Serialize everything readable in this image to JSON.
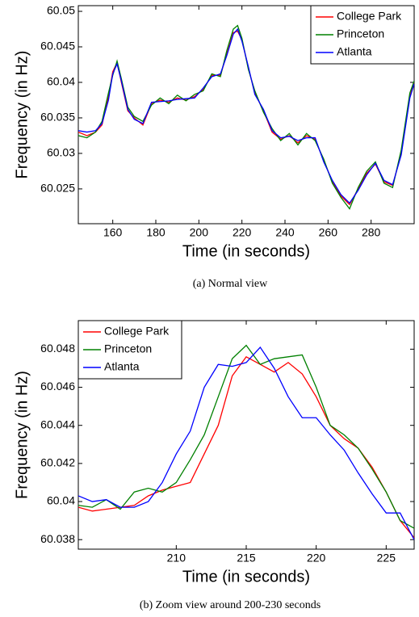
{
  "chart_data": [
    {
      "type": "line",
      "caption": "(a) Normal view",
      "xlabel": "Time (in seconds)",
      "ylabel": "Frequency (in Hz)",
      "legend": "upper right",
      "x": [
        144,
        148,
        152,
        155,
        158,
        160,
        162,
        164,
        167,
        170,
        174,
        178,
        182,
        186,
        190,
        194,
        198,
        202,
        206,
        210,
        213,
        216,
        218,
        220,
        223,
        226,
        230,
        234,
        238,
        242,
        246,
        250,
        254,
        258,
        262,
        266,
        270,
        274,
        278,
        282,
        286,
        290,
        294,
        298,
        300
      ],
      "xlim": [
        144,
        300
      ],
      "xticks": [
        160,
        180,
        200,
        220,
        240,
        260,
        280
      ],
      "ylim": [
        60.0201,
        60.0508
      ],
      "yticks": [
        60.025,
        60.03,
        60.035,
        60.04,
        60.045,
        60.05
      ],
      "series": [
        {
          "name": "College Park",
          "color": "#ff0000",
          "values": [
            60.033,
            60.0325,
            60.033,
            60.034,
            60.038,
            60.0415,
            60.0428,
            60.04,
            60.036,
            60.035,
            60.034,
            60.037,
            60.0375,
            60.0372,
            60.0378,
            60.0375,
            60.038,
            60.039,
            60.041,
            60.041,
            60.044,
            60.047,
            60.0472,
            60.046,
            60.042,
            60.0385,
            60.036,
            60.033,
            60.032,
            60.0325,
            60.0315,
            60.0325,
            60.032,
            60.029,
            60.026,
            60.024,
            60.0228,
            60.025,
            60.0272,
            60.0285,
            60.026,
            60.0255,
            60.03,
            60.038,
            60.04
          ]
        },
        {
          "name": "Princeton",
          "color": "#008000",
          "values": [
            60.0325,
            60.0322,
            60.033,
            60.0345,
            60.0385,
            60.041,
            60.043,
            60.0405,
            60.0365,
            60.0352,
            60.0345,
            60.0368,
            60.0378,
            60.037,
            60.0382,
            60.0374,
            60.0383,
            60.0388,
            60.0412,
            60.0408,
            60.0445,
            60.0475,
            60.048,
            60.0462,
            60.0418,
            60.0388,
            60.0358,
            60.0335,
            60.0318,
            60.0328,
            60.0312,
            60.0328,
            60.0318,
            60.0292,
            60.0258,
            60.0238,
            60.0222,
            60.0252,
            60.0275,
            60.0288,
            60.0258,
            60.0252,
            60.0305,
            60.0385,
            60.0402
          ]
        },
        {
          "name": "Atlanta",
          "color": "#0000ff",
          "values": [
            60.0332,
            60.033,
            60.0332,
            60.0342,
            60.0375,
            60.0412,
            60.0426,
            60.0402,
            60.0362,
            60.0348,
            60.0342,
            60.0372,
            60.0373,
            60.0374,
            60.0376,
            60.0377,
            60.0378,
            60.0392,
            60.0408,
            60.0412,
            60.0438,
            60.0468,
            60.0475,
            60.0458,
            60.0422,
            60.0383,
            60.0362,
            60.0332,
            60.0322,
            60.0324,
            60.0318,
            60.0322,
            60.0322,
            60.0288,
            60.0262,
            60.0242,
            60.023,
            60.0248,
            60.027,
            60.0286,
            60.0262,
            60.0256,
            60.0298,
            60.0378,
            60.0398
          ]
        }
      ]
    },
    {
      "type": "line",
      "caption": "(b) Zoom view around 200-230 seconds",
      "xlabel": "Time (in seconds)",
      "ylabel": "Frequency (in Hz)",
      "legend": "upper left",
      "x": [
        203,
        204,
        205,
        206,
        207,
        208,
        209,
        210,
        211,
        212,
        213,
        214,
        215,
        216,
        217,
        218,
        219,
        220,
        221,
        222,
        223,
        224,
        225,
        226,
        227
      ],
      "xlim": [
        203,
        227
      ],
      "xticks": [
        210,
        215,
        220,
        225
      ],
      "ylim": [
        60.0375,
        60.0495
      ],
      "yticks": [
        60.038,
        60.04,
        60.042,
        60.044,
        60.046,
        60.048
      ],
      "series": [
        {
          "name": "College Park",
          "color": "#ff0000",
          "values": [
            60.0397,
            60.0395,
            60.0396,
            60.0397,
            60.0398,
            60.0403,
            60.0406,
            60.0408,
            60.041,
            60.0425,
            60.044,
            60.0466,
            60.0476,
            60.0472,
            60.0468,
            60.0473,
            60.0467,
            60.0455,
            60.044,
            60.0433,
            60.0428,
            60.0418,
            60.0405,
            60.039,
            60.0381
          ]
        },
        {
          "name": "Princeton",
          "color": "#008000",
          "values": [
            60.0398,
            60.0397,
            60.0401,
            60.0396,
            60.0405,
            60.0407,
            60.0405,
            60.041,
            60.0422,
            60.0435,
            60.0455,
            60.0475,
            60.0482,
            60.0472,
            60.0475,
            60.0476,
            60.0477,
            60.046,
            60.044,
            60.0435,
            60.0428,
            60.0417,
            60.0405,
            60.039,
            60.0386
          ]
        },
        {
          "name": "Atlanta",
          "color": "#0000ff",
          "values": [
            60.0403,
            60.04,
            60.0401,
            60.0397,
            60.0397,
            60.04,
            60.041,
            60.0425,
            60.0437,
            60.046,
            60.0472,
            60.0471,
            60.0473,
            60.0481,
            60.047,
            60.0455,
            60.0444,
            60.0444,
            60.0435,
            60.0427,
            60.0415,
            60.0404,
            60.0394,
            60.0394,
            60.038
          ]
        }
      ]
    }
  ]
}
